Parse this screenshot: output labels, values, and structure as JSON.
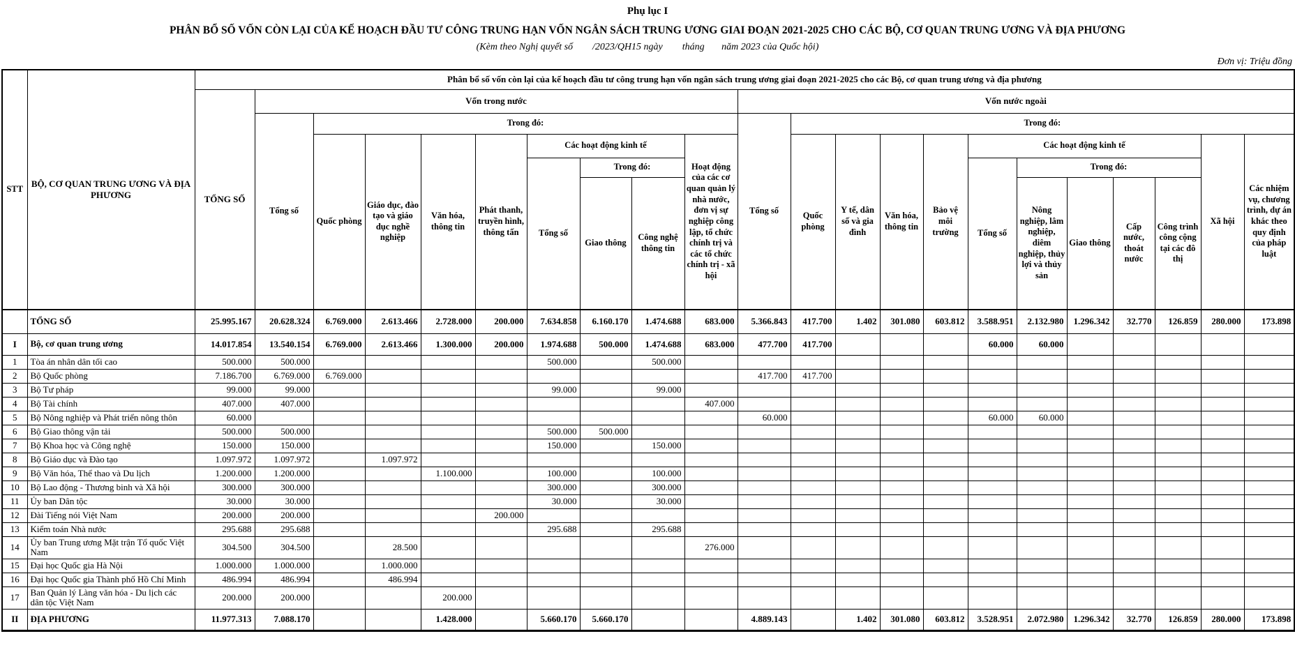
{
  "doc": {
    "appendix_label": "Phụ lục I",
    "title": "PHÂN BỔ SỐ VỐN CÒN LẠI CỦA KẾ HOẠCH ĐẦU TƯ CÔNG TRUNG HẠN VỐN NGÂN SÁCH TRUNG ƯƠNG GIAI ĐOẠN 2021-2025 CHO CÁC BỘ, CƠ QUAN TRUNG ƯƠNG VÀ ĐỊA PHƯƠNG",
    "subtitle": "(Kèm theo Nghị quyết số        /2023/QH15 ngày        tháng       năm 2023 của Quốc hội)",
    "unit_note": "Đơn vị: Triệu đồng"
  },
  "table": {
    "header": {
      "stt": "STT",
      "agency": "BỘ, CƠ QUAN TRUNG ƯƠNG VÀ ĐỊA PHƯƠNG",
      "grand_total": "TỔNG SỐ",
      "group_title": "Phân bổ số vốn còn lại của kế hoạch đầu tư công trung hạn vốn ngân sách trung ương giai đoạn 2021-2025 cho các Bộ, cơ quan trung ương và địa phương",
      "domestic": {
        "title": "Vốn trong nước",
        "total": "Tổng số",
        "of_which": "Trong đó:",
        "cols": {
          "quoc_phong": "Quốc phòng",
          "giao_duc": "Giáo dục, đào tạo và giáo dục nghề nghiệp",
          "van_hoa": "Văn hóa, thông tin",
          "phat_thanh": "Phát thanh, truyền hình, thông tấn",
          "kinh_te": "Các hoạt động kinh tế",
          "kinh_te_total": "Tổng số",
          "kinh_te_of_which": "Trong đó:",
          "giao_thong": "Giao thông",
          "cntt": "Công nghệ thông tin",
          "hanh_chinh": "Hoạt động của các cơ quan quản lý nhà nước, đơn vị sự nghiệp công lập, tổ chức chính trị và các tổ chức chính trị - xã hội"
        }
      },
      "foreign": {
        "title": "Vốn nước ngoài",
        "total": "Tổng số",
        "of_which": "Trong đó:",
        "cols": {
          "quoc_phong": "Quốc phòng",
          "y_te": "Y tế, dân số và gia đình",
          "van_hoa": "Văn hóa, thông tin",
          "moi_truong": "Bảo vệ môi trường",
          "kinh_te": "Các hoạt động kinh tế",
          "kinh_te_total": "Tổng số",
          "kinh_te_of_which": "Trong đó:",
          "nong_nghiep": "Nông nghiệp, lâm nghiệp, diêm nghiệp, thủy lợi và thủy sản",
          "giao_thong": "Giao thông",
          "cap_nuoc": "Cấp nước, thoát nước",
          "cong_trinh": "Công trình công cộng tại các đô thị",
          "xa_hoi": "Xã hội",
          "khac": "Các nhiệm vụ, chương trình, dự án khác theo quy định của pháp luật"
        }
      }
    },
    "rows": [
      {
        "stt": "",
        "name": "TỔNG SỐ",
        "style": "total",
        "values": [
          "25.995.167",
          "20.628.324",
          "6.769.000",
          "2.613.466",
          "2.728.000",
          "200.000",
          "7.634.858",
          "6.160.170",
          "1.474.688",
          "683.000",
          "5.366.843",
          "417.700",
          "1.402",
          "301.080",
          "603.812",
          "3.588.951",
          "2.132.980",
          "1.296.342",
          "32.770",
          "126.859",
          "280.000",
          "173.898"
        ]
      },
      {
        "stt": "I",
        "name": "Bộ, cơ quan trung ương",
        "style": "section",
        "values": [
          "14.017.854",
          "13.540.154",
          "6.769.000",
          "2.613.466",
          "1.300.000",
          "200.000",
          "1.974.688",
          "500.000",
          "1.474.688",
          "683.000",
          "477.700",
          "417.700",
          "",
          "",
          "",
          "60.000",
          "60.000",
          "",
          "",
          "",
          "",
          ""
        ]
      },
      {
        "stt": "1",
        "name": "Tòa án nhân dân tối cao",
        "style": "",
        "values": [
          "500.000",
          "500.000",
          "",
          "",
          "",
          "",
          "500.000",
          "",
          "500.000",
          "",
          "",
          "",
          "",
          "",
          "",
          "",
          "",
          "",
          "",
          "",
          "",
          ""
        ]
      },
      {
        "stt": "2",
        "name": "Bộ Quốc phòng",
        "style": "",
        "values": [
          "7.186.700",
          "6.769.000",
          "6.769.000",
          "",
          "",
          "",
          "",
          "",
          "",
          "",
          "417.700",
          "417.700",
          "",
          "",
          "",
          "",
          "",
          "",
          "",
          "",
          "",
          ""
        ]
      },
      {
        "stt": "3",
        "name": "Bộ Tư pháp",
        "style": "",
        "values": [
          "99.000",
          "99.000",
          "",
          "",
          "",
          "",
          "99.000",
          "",
          "99.000",
          "",
          "",
          "",
          "",
          "",
          "",
          "",
          "",
          "",
          "",
          "",
          "",
          ""
        ]
      },
      {
        "stt": "4",
        "name": "Bộ Tài chính",
        "style": "",
        "values": [
          "407.000",
          "407.000",
          "",
          "",
          "",
          "",
          "",
          "",
          "",
          "407.000",
          "",
          "",
          "",
          "",
          "",
          "",
          "",
          "",
          "",
          "",
          "",
          ""
        ]
      },
      {
        "stt": "5",
        "name": "Bộ Nông nghiệp và Phát triển nông thôn",
        "style": "",
        "values": [
          "60.000",
          "",
          "",
          "",
          "",
          "",
          "",
          "",
          "",
          "",
          "60.000",
          "",
          "",
          "",
          "",
          "60.000",
          "60.000",
          "",
          "",
          "",
          "",
          ""
        ]
      },
      {
        "stt": "6",
        "name": "Bộ Giao thông vận tải",
        "style": "",
        "values": [
          "500.000",
          "500.000",
          "",
          "",
          "",
          "",
          "500.000",
          "500.000",
          "",
          "",
          "",
          "",
          "",
          "",
          "",
          "",
          "",
          "",
          "",
          "",
          "",
          ""
        ]
      },
      {
        "stt": "7",
        "name": "Bộ Khoa học và Công nghệ",
        "style": "",
        "values": [
          "150.000",
          "150.000",
          "",
          "",
          "",
          "",
          "150.000",
          "",
          "150.000",
          "",
          "",
          "",
          "",
          "",
          "",
          "",
          "",
          "",
          "",
          "",
          "",
          ""
        ]
      },
      {
        "stt": "8",
        "name": "Bộ Giáo dục và Đào tạo",
        "style": "",
        "values": [
          "1.097.972",
          "1.097.972",
          "",
          "1.097.972",
          "",
          "",
          "",
          "",
          "",
          "",
          "",
          "",
          "",
          "",
          "",
          "",
          "",
          "",
          "",
          "",
          "",
          ""
        ]
      },
      {
        "stt": "9",
        "name": "Bộ Văn hóa, Thể thao và Du lịch",
        "style": "",
        "values": [
          "1.200.000",
          "1.200.000",
          "",
          "",
          "1.100.000",
          "",
          "100.000",
          "",
          "100.000",
          "",
          "",
          "",
          "",
          "",
          "",
          "",
          "",
          "",
          "",
          "",
          "",
          ""
        ]
      },
      {
        "stt": "10",
        "name": "Bộ Lao động - Thương binh và Xã hội",
        "style": "",
        "values": [
          "300.000",
          "300.000",
          "",
          "",
          "",
          "",
          "300.000",
          "",
          "300.000",
          "",
          "",
          "",
          "",
          "",
          "",
          "",
          "",
          "",
          "",
          "",
          "",
          ""
        ]
      },
      {
        "stt": "11",
        "name": "Ủy ban Dân tộc",
        "style": "",
        "values": [
          "30.000",
          "30.000",
          "",
          "",
          "",
          "",
          "30.000",
          "",
          "30.000",
          "",
          "",
          "",
          "",
          "",
          "",
          "",
          "",
          "",
          "",
          "",
          "",
          ""
        ]
      },
      {
        "stt": "12",
        "name": "Đài Tiếng nói Việt Nam",
        "style": "",
        "values": [
          "200.000",
          "200.000",
          "",
          "",
          "",
          "200.000",
          "",
          "",
          "",
          "",
          "",
          "",
          "",
          "",
          "",
          "",
          "",
          "",
          "",
          "",
          "",
          ""
        ]
      },
      {
        "stt": "13",
        "name": "Kiểm toán Nhà nước",
        "style": "",
        "values": [
          "295.688",
          "295.688",
          "",
          "",
          "",
          "",
          "295.688",
          "",
          "295.688",
          "",
          "",
          "",
          "",
          "",
          "",
          "",
          "",
          "",
          "",
          "",
          "",
          ""
        ]
      },
      {
        "stt": "14",
        "name": "Ủy ban Trung ương Mặt trận Tổ quốc Việt Nam",
        "style": "",
        "values": [
          "304.500",
          "304.500",
          "",
          "28.500",
          "",
          "",
          "",
          "",
          "",
          "276.000",
          "",
          "",
          "",
          "",
          "",
          "",
          "",
          "",
          "",
          "",
          "",
          ""
        ]
      },
      {
        "stt": "15",
        "name": "Đại học Quốc gia Hà Nội",
        "style": "",
        "values": [
          "1.000.000",
          "1.000.000",
          "",
          "1.000.000",
          "",
          "",
          "",
          "",
          "",
          "",
          "",
          "",
          "",
          "",
          "",
          "",
          "",
          "",
          "",
          "",
          "",
          ""
        ]
      },
      {
        "stt": "16",
        "name": "Đại học Quốc gia Thành phố Hồ Chí Minh",
        "style": "",
        "values": [
          "486.994",
          "486.994",
          "",
          "486.994",
          "",
          "",
          "",
          "",
          "",
          "",
          "",
          "",
          "",
          "",
          "",
          "",
          "",
          "",
          "",
          "",
          "",
          ""
        ]
      },
      {
        "stt": "17",
        "name": "Ban Quản lý Làng văn hóa - Du lịch các dân tộc Việt Nam",
        "style": "",
        "values": [
          "200.000",
          "200.000",
          "",
          "",
          "200.000",
          "",
          "",
          "",
          "",
          "",
          "",
          "",
          "",
          "",
          "",
          "",
          "",
          "",
          "",
          "",
          "",
          ""
        ]
      },
      {
        "stt": "II",
        "name": "ĐỊA PHƯƠNG",
        "style": "section",
        "values": [
          "11.977.313",
          "7.088.170",
          "",
          "",
          "1.428.000",
          "",
          "5.660.170",
          "5.660.170",
          "",
          "",
          "4.889.143",
          "",
          "1.402",
          "301.080",
          "603.812",
          "3.528.951",
          "2.072.980",
          "1.296.342",
          "32.770",
          "126.859",
          "280.000",
          "173.898"
        ]
      }
    ]
  }
}
